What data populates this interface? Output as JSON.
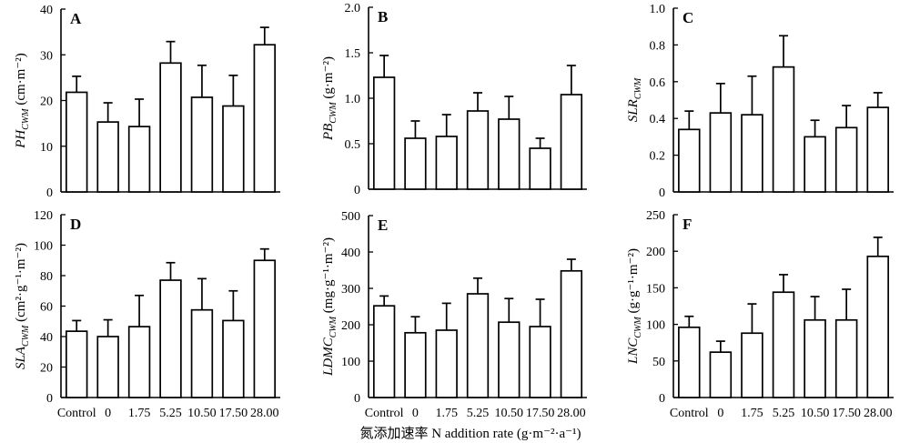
{
  "xlabel": "氮添加速率 N addition rate (g·m⁻²·a⁻¹)",
  "chart_data": [
    {
      "type": "bar",
      "panel": "A",
      "ylabel_main": "PH",
      "ylabel_sub": "CWM",
      "ylabel_unit": " (cm·m⁻²)",
      "categories": [
        "Control",
        "0",
        "1.75",
        "5.25",
        "10.50",
        "17.50",
        "28.00"
      ],
      "values": [
        21.8,
        15.3,
        14.3,
        28.2,
        20.7,
        18.8,
        32.2
      ],
      "errors": [
        3.5,
        4.2,
        6.0,
        4.7,
        7.0,
        6.7,
        3.8
      ],
      "ylim": [
        0,
        40
      ],
      "yticks": [
        0,
        10,
        20,
        30,
        40
      ],
      "ytick_labels": [
        "0",
        "10",
        "20",
        "30",
        "40"
      ]
    },
    {
      "type": "bar",
      "panel": "B",
      "ylabel_main": "PB",
      "ylabel_sub": "CWM",
      "ylabel_unit": " (g·m⁻²)",
      "categories": [
        "Control",
        "0",
        "1.75",
        "5.25",
        "10.50",
        "17.50",
        "28.00"
      ],
      "values": [
        1.23,
        0.56,
        0.58,
        0.86,
        0.77,
        0.45,
        1.04
      ],
      "errors": [
        0.24,
        0.19,
        0.24,
        0.2,
        0.25,
        0.11,
        0.32
      ],
      "ylim": [
        0,
        2.0
      ],
      "yticks": [
        0,
        0.5,
        1.0,
        1.5,
        2.0
      ],
      "ytick_labels": [
        "0",
        "0.5",
        "1.0",
        "1.5",
        "2.0"
      ]
    },
    {
      "type": "bar",
      "panel": "C",
      "ylabel_main": "SLR",
      "ylabel_sub": "CWM",
      "ylabel_unit": "",
      "categories": [
        "Control",
        "0",
        "1.75",
        "5.25",
        "10.50",
        "17.50",
        "28.00"
      ],
      "values": [
        0.34,
        0.43,
        0.42,
        0.68,
        0.3,
        0.35,
        0.46
      ],
      "errors": [
        0.1,
        0.16,
        0.21,
        0.17,
        0.09,
        0.12,
        0.08
      ],
      "ylim": [
        0,
        1.0
      ],
      "yticks": [
        0,
        0.2,
        0.4,
        0.6,
        0.8,
        1.0
      ],
      "ytick_labels": [
        "0",
        "0.2",
        "0.4",
        "0.6",
        "0.8",
        "1.0"
      ]
    },
    {
      "type": "bar",
      "panel": "D",
      "ylabel_main": "SLA",
      "ylabel_sub": "CWM",
      "ylabel_unit": " (cm²·g⁻¹·m⁻²)",
      "categories": [
        "Control",
        "0",
        "1.75",
        "5.25",
        "10.50",
        "17.50",
        "28.00"
      ],
      "values": [
        43.5,
        40.0,
        46.5,
        77.0,
        57.5,
        50.5,
        90.0
      ],
      "errors": [
        7.0,
        11.0,
        20.5,
        11.5,
        20.5,
        19.5,
        7.5
      ],
      "ylim": [
        0,
        120
      ],
      "yticks": [
        0,
        20,
        40,
        60,
        80,
        100,
        120
      ],
      "ytick_labels": [
        "0",
        "20",
        "40",
        "60",
        "80",
        "100",
        "120"
      ]
    },
    {
      "type": "bar",
      "panel": "E",
      "ylabel_main": "LDMC",
      "ylabel_sub": "CWM",
      "ylabel_unit": " (mg·g⁻¹·m⁻²)",
      "categories": [
        "Control",
        "0",
        "1.75",
        "5.25",
        "10.50",
        "17.50",
        "28.00"
      ],
      "values": [
        252,
        178,
        185,
        285,
        207,
        195,
        348
      ],
      "errors": [
        27,
        44,
        74,
        43,
        65,
        75,
        32
      ],
      "ylim": [
        0,
        500
      ],
      "yticks": [
        0,
        100,
        200,
        300,
        400,
        500
      ],
      "ytick_labels": [
        "0",
        "100",
        "200",
        "300",
        "400",
        "500"
      ]
    },
    {
      "type": "bar",
      "panel": "F",
      "ylabel_main": "LNC",
      "ylabel_sub": "CWM",
      "ylabel_unit": " (g·g⁻¹·m⁻²)",
      "categories": [
        "Control",
        "0",
        "1.75",
        "5.25",
        "10.50",
        "17.50",
        "28.00"
      ],
      "values": [
        96,
        62,
        88,
        144,
        106,
        106,
        193
      ],
      "errors": [
        15,
        15,
        40,
        24,
        32,
        42,
        26
      ],
      "ylim": [
        0,
        250
      ],
      "yticks": [
        0,
        50,
        100,
        150,
        200,
        250
      ],
      "ytick_labels": [
        "0",
        "50",
        "100",
        "150",
        "200",
        "250"
      ]
    }
  ]
}
